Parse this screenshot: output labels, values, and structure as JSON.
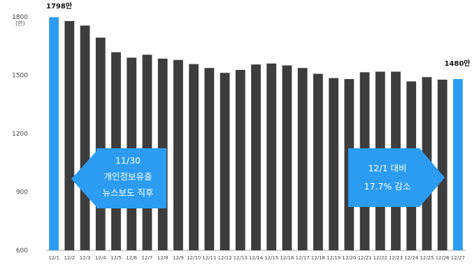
{
  "chart_data": {
    "type": "bar",
    "unit_label": "(만)",
    "categories": [
      "12/1",
      "12/2",
      "12/3",
      "12/4",
      "12/5",
      "12/6",
      "12/7",
      "12/8",
      "12/9",
      "12/10",
      "12/11",
      "12/12",
      "12/13",
      "12/14",
      "12/15",
      "12/16",
      "12/17",
      "12/18",
      "12/19",
      "12/20",
      "12/21",
      "12/22",
      "12/23",
      "12/24",
      "12/25",
      "12/26",
      "12/27"
    ],
    "values": [
      1798,
      1778,
      1755,
      1693,
      1618,
      1590,
      1605,
      1585,
      1578,
      1557,
      1537,
      1512,
      1527,
      1555,
      1560,
      1550,
      1537,
      1507,
      1485,
      1480,
      1515,
      1518,
      1518,
      1468,
      1490,
      1477,
      1480
    ],
    "highlight_indices": [
      0,
      26
    ],
    "ylim": [
      600,
      1800
    ],
    "yticks": [
      600,
      900,
      1200,
      1500,
      1800
    ],
    "grid": false,
    "colors": {
      "bar": "#3d3d3d",
      "highlight": "#2b9cf2",
      "callout": "#2b9cf2"
    },
    "edge_labels": {
      "start": "1798만",
      "end": "1480만"
    },
    "annotations": {
      "left": {
        "line1": "11/30",
        "line2": "개인정보유출",
        "line3": "뉴스보도 직후"
      },
      "right": {
        "line1": "12/1 대비",
        "line2": "17.7% 감소"
      }
    }
  }
}
